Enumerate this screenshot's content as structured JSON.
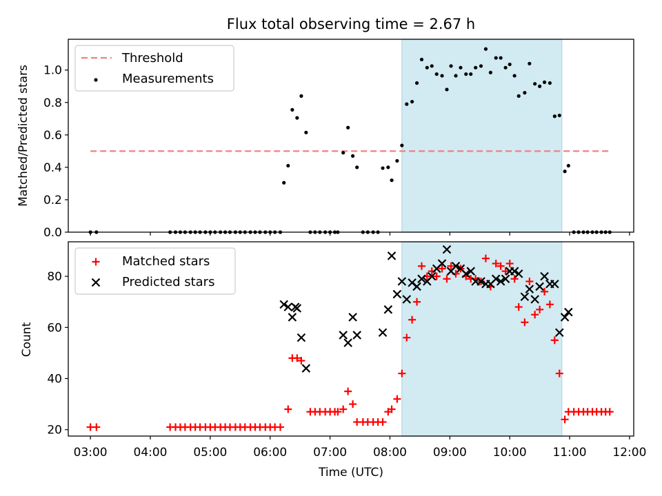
{
  "chart_data": {
    "type": "scatter",
    "title": "Flux total observing time = 2.67 h",
    "xlabel": "Time (UTC)",
    "x_unit": "hours UTC",
    "xlim": [
      2.63,
      12.07
    ],
    "xticks": [
      3,
      4,
      5,
      6,
      7,
      8,
      9,
      10,
      11,
      12
    ],
    "xtick_labels": [
      "03:00",
      "04:00",
      "05:00",
      "06:00",
      "07:00",
      "08:00",
      "09:00",
      "10:00",
      "11:00",
      "12:00"
    ],
    "shaded_span": [
      8.2,
      10.87
    ],
    "shaded_color": "#ADD8E6",
    "panels": [
      {
        "ylabel": "Matched/Predicted stars",
        "ylim": [
          0,
          1.19
        ],
        "yticks": [
          0.0,
          0.2,
          0.4,
          0.6,
          0.8,
          1.0
        ],
        "ytick_labels": [
          "0.0",
          "0.2",
          "0.4",
          "0.6",
          "0.8",
          "1.0"
        ],
        "legend_position": "upper-left",
        "threshold": {
          "name": "Threshold",
          "value": 0.5,
          "x_range": [
            3.0,
            11.67
          ],
          "color": "#F08080"
        },
        "series": [
          {
            "name": "Measurements",
            "marker": "dot",
            "color": "#000000",
            "points": [
              [
                3.0,
                0
              ],
              [
                3.1,
                0
              ],
              [
                4.33,
                0
              ],
              [
                4.42,
                0
              ],
              [
                4.5,
                0
              ],
              [
                4.58,
                0
              ],
              [
                4.67,
                0
              ],
              [
                4.75,
                0
              ],
              [
                4.83,
                0
              ],
              [
                4.92,
                0
              ],
              [
                5.0,
                0
              ],
              [
                5.08,
                0
              ],
              [
                5.17,
                0
              ],
              [
                5.25,
                0
              ],
              [
                5.33,
                0
              ],
              [
                5.42,
                0
              ],
              [
                5.5,
                0
              ],
              [
                5.58,
                0
              ],
              [
                5.67,
                0
              ],
              [
                5.75,
                0
              ],
              [
                5.83,
                0
              ],
              [
                5.92,
                0
              ],
              [
                6.0,
                0
              ],
              [
                6.08,
                0
              ],
              [
                6.17,
                0
              ],
              [
                6.23,
                0.305
              ],
              [
                6.3,
                0.41
              ],
              [
                6.37,
                0.755
              ],
              [
                6.45,
                0.705
              ],
              [
                6.52,
                0.84
              ],
              [
                6.6,
                0.615
              ],
              [
                6.67,
                0
              ],
              [
                6.75,
                0
              ],
              [
                6.83,
                0
              ],
              [
                6.92,
                0
              ],
              [
                7.0,
                0
              ],
              [
                7.08,
                0
              ],
              [
                7.13,
                0
              ],
              [
                7.22,
                0.49
              ],
              [
                7.3,
                0.645
              ],
              [
                7.38,
                0.47
              ],
              [
                7.45,
                0.4
              ],
              [
                7.55,
                0
              ],
              [
                7.63,
                0
              ],
              [
                7.72,
                0
              ],
              [
                7.8,
                0
              ],
              [
                7.88,
                0.395
              ],
              [
                7.97,
                0.4
              ],
              [
                8.03,
                0.32
              ],
              [
                8.12,
                0.44
              ],
              [
                8.2,
                0.535
              ],
              [
                8.28,
                0.79
              ],
              [
                8.37,
                0.805
              ],
              [
                8.45,
                0.92
              ],
              [
                8.53,
                1.065
              ],
              [
                8.62,
                1.015
              ],
              [
                8.7,
                1.025
              ],
              [
                8.78,
                0.975
              ],
              [
                8.87,
                0.965
              ],
              [
                8.95,
                0.88
              ],
              [
                9.02,
                1.025
              ],
              [
                9.1,
                0.965
              ],
              [
                9.18,
                1.015
              ],
              [
                9.27,
                0.975
              ],
              [
                9.35,
                0.975
              ],
              [
                9.43,
                1.015
              ],
              [
                9.52,
                1.025
              ],
              [
                9.6,
                1.13
              ],
              [
                9.68,
                0.985
              ],
              [
                9.77,
                1.075
              ],
              [
                9.85,
                1.075
              ],
              [
                9.93,
                1.015
              ],
              [
                10.0,
                1.035
              ],
              [
                10.08,
                0.965
              ],
              [
                10.15,
                0.84
              ],
              [
                10.25,
                0.86
              ],
              [
                10.33,
                1.04
              ],
              [
                10.42,
                0.915
              ],
              [
                10.5,
                0.9
              ],
              [
                10.58,
                0.925
              ],
              [
                10.67,
                0.92
              ],
              [
                10.75,
                0.715
              ],
              [
                10.83,
                0.72
              ],
              [
                10.92,
                0.375
              ],
              [
                10.98,
                0.41
              ],
              [
                11.07,
                0
              ],
              [
                11.15,
                0
              ],
              [
                11.23,
                0
              ],
              [
                11.3,
                0
              ],
              [
                11.38,
                0
              ],
              [
                11.45,
                0
              ],
              [
                11.53,
                0
              ],
              [
                11.6,
                0
              ],
              [
                11.67,
                0
              ]
            ]
          }
        ]
      },
      {
        "ylabel": "Count",
        "ylim": [
          17.5,
          93.5
        ],
        "yticks": [
          20,
          40,
          60,
          80
        ],
        "ytick_labels": [
          "20",
          "40",
          "60",
          "80"
        ],
        "legend_position": "upper-left",
        "series": [
          {
            "name": "Matched stars",
            "marker": "plus",
            "color": "#FF0000",
            "points": [
              [
                3.0,
                21
              ],
              [
                3.1,
                21
              ],
              [
                4.33,
                21
              ],
              [
                4.42,
                21
              ],
              [
                4.5,
                21
              ],
              [
                4.58,
                21
              ],
              [
                4.67,
                21
              ],
              [
                4.75,
                21
              ],
              [
                4.83,
                21
              ],
              [
                4.92,
                21
              ],
              [
                5.0,
                21
              ],
              [
                5.08,
                21
              ],
              [
                5.17,
                21
              ],
              [
                5.25,
                21
              ],
              [
                5.33,
                21
              ],
              [
                5.42,
                21
              ],
              [
                5.5,
                21
              ],
              [
                5.58,
                21
              ],
              [
                5.67,
                21
              ],
              [
                5.75,
                21
              ],
              [
                5.83,
                21
              ],
              [
                5.92,
                21
              ],
              [
                6.0,
                21
              ],
              [
                6.08,
                21
              ],
              [
                6.17,
                21
              ],
              [
                6.3,
                28
              ],
              [
                6.37,
                48
              ],
              [
                6.45,
                48
              ],
              [
                6.52,
                47
              ],
              [
                6.67,
                27
              ],
              [
                6.75,
                27
              ],
              [
                6.83,
                27
              ],
              [
                6.92,
                27
              ],
              [
                7.0,
                27
              ],
              [
                7.08,
                27
              ],
              [
                7.13,
                27
              ],
              [
                7.22,
                28
              ],
              [
                7.3,
                35
              ],
              [
                7.38,
                30
              ],
              [
                7.45,
                23
              ],
              [
                7.55,
                23
              ],
              [
                7.63,
                23
              ],
              [
                7.72,
                23
              ],
              [
                7.8,
                23
              ],
              [
                7.88,
                23
              ],
              [
                7.97,
                27
              ],
              [
                8.03,
                28
              ],
              [
                8.12,
                32
              ],
              [
                8.2,
                42
              ],
              [
                8.28,
                56
              ],
              [
                8.37,
                63
              ],
              [
                8.45,
                70
              ],
              [
                8.53,
                84
              ],
              [
                8.62,
                80
              ],
              [
                8.7,
                82
              ],
              [
                8.78,
                80
              ],
              [
                8.87,
                83
              ],
              [
                8.95,
                79
              ],
              [
                9.02,
                84
              ],
              [
                9.1,
                81
              ],
              [
                9.18,
                83
              ],
              [
                9.27,
                80
              ],
              [
                9.35,
                79
              ],
              [
                9.43,
                79
              ],
              [
                9.52,
                78
              ],
              [
                9.6,
                87
              ],
              [
                9.68,
                76
              ],
              [
                9.77,
                85
              ],
              [
                9.85,
                84
              ],
              [
                9.93,
                82
              ],
              [
                10.0,
                85
              ],
              [
                10.08,
                79
              ],
              [
                10.15,
                68
              ],
              [
                10.25,
                62
              ],
              [
                10.33,
                78
              ],
              [
                10.42,
                65
              ],
              [
                10.5,
                67
              ],
              [
                10.58,
                74
              ],
              [
                10.67,
                69
              ],
              [
                10.75,
                55
              ],
              [
                10.83,
                42
              ],
              [
                10.92,
                24
              ],
              [
                10.98,
                27
              ],
              [
                11.07,
                27
              ],
              [
                11.15,
                27
              ],
              [
                11.23,
                27
              ],
              [
                11.3,
                27
              ],
              [
                11.38,
                27
              ],
              [
                11.45,
                27
              ],
              [
                11.53,
                27
              ],
              [
                11.6,
                27
              ],
              [
                11.67,
                27
              ]
            ]
          },
          {
            "name": "Predicted stars",
            "marker": "cross",
            "color": "#000000",
            "points": [
              [
                6.23,
                69
              ],
              [
                6.3,
                68
              ],
              [
                6.37,
                64
              ],
              [
                6.42,
                68
              ],
              [
                6.45,
                67.5
              ],
              [
                6.52,
                56
              ],
              [
                6.6,
                44
              ],
              [
                7.22,
                57
              ],
              [
                7.3,
                54
              ],
              [
                7.38,
                64
              ],
              [
                7.45,
                57
              ],
              [
                7.88,
                58
              ],
              [
                7.97,
                67
              ],
              [
                8.03,
                88
              ],
              [
                8.12,
                73
              ],
              [
                8.2,
                78
              ],
              [
                8.28,
                71
              ],
              [
                8.37,
                77.5
              ],
              [
                8.45,
                76
              ],
              [
                8.53,
                79
              ],
              [
                8.62,
                78
              ],
              [
                8.7,
                80
              ],
              [
                8.78,
                83
              ],
              [
                8.87,
                85
              ],
              [
                8.95,
                90.5
              ],
              [
                9.02,
                82
              ],
              [
                9.1,
                84
              ],
              [
                9.18,
                83
              ],
              [
                9.27,
                81
              ],
              [
                9.35,
                82
              ],
              [
                9.43,
                78
              ],
              [
                9.52,
                78
              ],
              [
                9.6,
                77
              ],
              [
                9.68,
                77
              ],
              [
                9.77,
                79
              ],
              [
                9.85,
                78
              ],
              [
                9.93,
                79
              ],
              [
                10.0,
                82
              ],
              [
                10.08,
                82
              ],
              [
                10.15,
                81
              ],
              [
                10.25,
                72
              ],
              [
                10.33,
                75
              ],
              [
                10.42,
                71
              ],
              [
                10.5,
                76
              ],
              [
                10.58,
                80
              ],
              [
                10.67,
                77
              ],
              [
                10.75,
                77
              ],
              [
                10.83,
                58
              ],
              [
                10.92,
                64
              ],
              [
                10.98,
                66
              ]
            ]
          }
        ]
      }
    ]
  }
}
